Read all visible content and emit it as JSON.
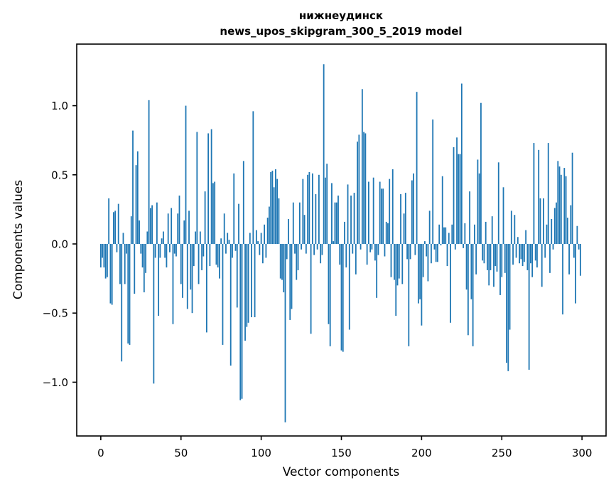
{
  "title": {
    "line1": "нижнеудинск",
    "line2": "news_upos_skipgram_300_5_2019 model"
  },
  "chart_data": {
    "type": "bar",
    "title": "нижнеудинск",
    "subtitle": "news_upos_skipgram_300_5_2019 model",
    "xlabel": "Vector components",
    "ylabel": "Components values",
    "bar_color": "#1f77b4",
    "grid": false,
    "legend": "none",
    "n_components": 300,
    "xlim": [
      -15,
      315
    ],
    "ylim": [
      -1.39,
      1.45
    ],
    "x_ticks": [
      {
        "value": 0,
        "label": "0"
      },
      {
        "value": 50,
        "label": "50"
      },
      {
        "value": 100,
        "label": "100"
      },
      {
        "value": 150,
        "label": "150"
      },
      {
        "value": 200,
        "label": "200"
      },
      {
        "value": 250,
        "label": "250"
      },
      {
        "value": 300,
        "label": "300"
      }
    ],
    "y_ticks": [
      {
        "value": 1.0,
        "label": "1.0"
      },
      {
        "value": 0.5,
        "label": "0.5"
      },
      {
        "value": 0.0,
        "label": "0.0"
      },
      {
        "value": -0.5,
        "label": "−0.5"
      },
      {
        "value": -1.0,
        "label": "−1.0"
      }
    ],
    "values": [
      -0.17,
      -0.1,
      -0.17,
      -0.25,
      -0.24,
      0.33,
      -0.43,
      -0.44,
      0.23,
      0.24,
      -0.06,
      0.29,
      -0.29,
      -0.85,
      0.08,
      -0.29,
      -0.07,
      -0.72,
      -0.73,
      0.2,
      0.82,
      -0.36,
      0.57,
      0.67,
      0.17,
      -0.07,
      -0.17,
      -0.35,
      -0.21,
      0.09,
      1.04,
      0.26,
      0.28,
      -1.01,
      -0.1,
      0.3,
      -0.52,
      -0.1,
      0.04,
      0.09,
      -0.1,
      -0.17,
      0.22,
      -0.06,
      0.26,
      -0.58,
      -0.07,
      -0.09,
      0.22,
      0.35,
      -0.29,
      -0.39,
      0.17,
      1.0,
      -0.47,
      0.24,
      -0.33,
      -0.5,
      -0.16,
      0.09,
      0.81,
      -0.29,
      0.09,
      -0.19,
      -0.09,
      0.38,
      -0.64,
      0.8,
      -0.16,
      0.83,
      0.44,
      0.45,
      -0.15,
      -0.17,
      -0.25,
      0.04,
      -0.73,
      0.22,
      -0.07,
      0.08,
      0.03,
      -0.88,
      -0.1,
      0.51,
      -0.05,
      -0.46,
      0.29,
      -1.13,
      -1.12,
      0.6,
      -0.7,
      -0.6,
      -0.57,
      0.08,
      -0.53,
      0.96,
      -0.53,
      0.1,
      0.02,
      -0.08,
      0.08,
      -0.14,
      0.14,
      -0.1,
      0.19,
      0.27,
      0.52,
      0.53,
      0.41,
      0.54,
      0.47,
      0.33,
      -0.25,
      -0.26,
      -0.35,
      -1.29,
      -0.11,
      0.18,
      -0.55,
      -0.47,
      0.3,
      -0.07,
      -0.26,
      -0.19,
      0.3,
      -0.04,
      0.47,
      0.21,
      -0.07,
      0.5,
      0.52,
      -0.65,
      0.51,
      -0.08,
      0.36,
      -0.04,
      0.5,
      -0.14,
      -0.08,
      1.3,
      0.48,
      0.58,
      -0.58,
      -0.74,
      0.44,
      0.02,
      0.3,
      0.3,
      0.35,
      -0.15,
      -0.77,
      -0.78,
      0.16,
      -0.17,
      0.43,
      -0.62,
      0.35,
      -0.07,
      0.37,
      -0.22,
      0.74,
      0.79,
      -0.04,
      1.12,
      0.81,
      0.8,
      -0.15,
      0.45,
      -0.06,
      -0.04,
      0.48,
      -0.12,
      -0.39,
      -0.08,
      0.45,
      0.4,
      0.4,
      -0.09,
      0.16,
      0.15,
      0.47,
      -0.24,
      0.54,
      -0.26,
      -0.52,
      -0.3,
      -0.25,
      0.36,
      -0.29,
      0.22,
      0.37,
      -0.11,
      -0.74,
      -0.11,
      0.46,
      0.51,
      -0.08,
      1.1,
      -0.43,
      -0.4,
      -0.59,
      -0.24,
      0.02,
      -0.09,
      -0.27,
      0.24,
      -0.14,
      0.9,
      -0.04,
      -0.13,
      -0.13,
      0.14,
      -0.01,
      0.49,
      0.12,
      0.12,
      -0.16,
      0.08,
      -0.57,
      0.14,
      0.7,
      -0.04,
      0.77,
      0.65,
      0.65,
      1.16,
      -0.03,
      0.15,
      -0.33,
      -0.66,
      0.38,
      -0.4,
      -0.74,
      0.14,
      -0.22,
      0.61,
      0.51,
      1.02,
      -0.12,
      -0.14,
      0.16,
      -0.19,
      -0.3,
      -0.19,
      0.2,
      -0.31,
      -0.16,
      -0.2,
      0.59,
      -0.37,
      -0.24,
      0.41,
      -0.21,
      -0.86,
      -0.92,
      -0.62,
      0.24,
      -0.15,
      0.21,
      -0.1,
      0.05,
      -0.14,
      -0.11,
      -0.16,
      -0.13,
      0.1,
      -0.19,
      -0.91,
      -0.14,
      -0.24,
      0.73,
      -0.12,
      -0.17,
      0.68,
      0.33,
      -0.31,
      0.33,
      -0.1,
      0.14,
      0.73,
      -0.21,
      0.18,
      -0.04,
      0.26,
      0.3,
      0.6,
      0.56,
      0.5,
      -0.51,
      0.55,
      0.49,
      0.19,
      -0.22,
      0.28,
      0.66,
      -0.1,
      -0.43,
      0.13,
      -0.04,
      -0.23
    ]
  }
}
